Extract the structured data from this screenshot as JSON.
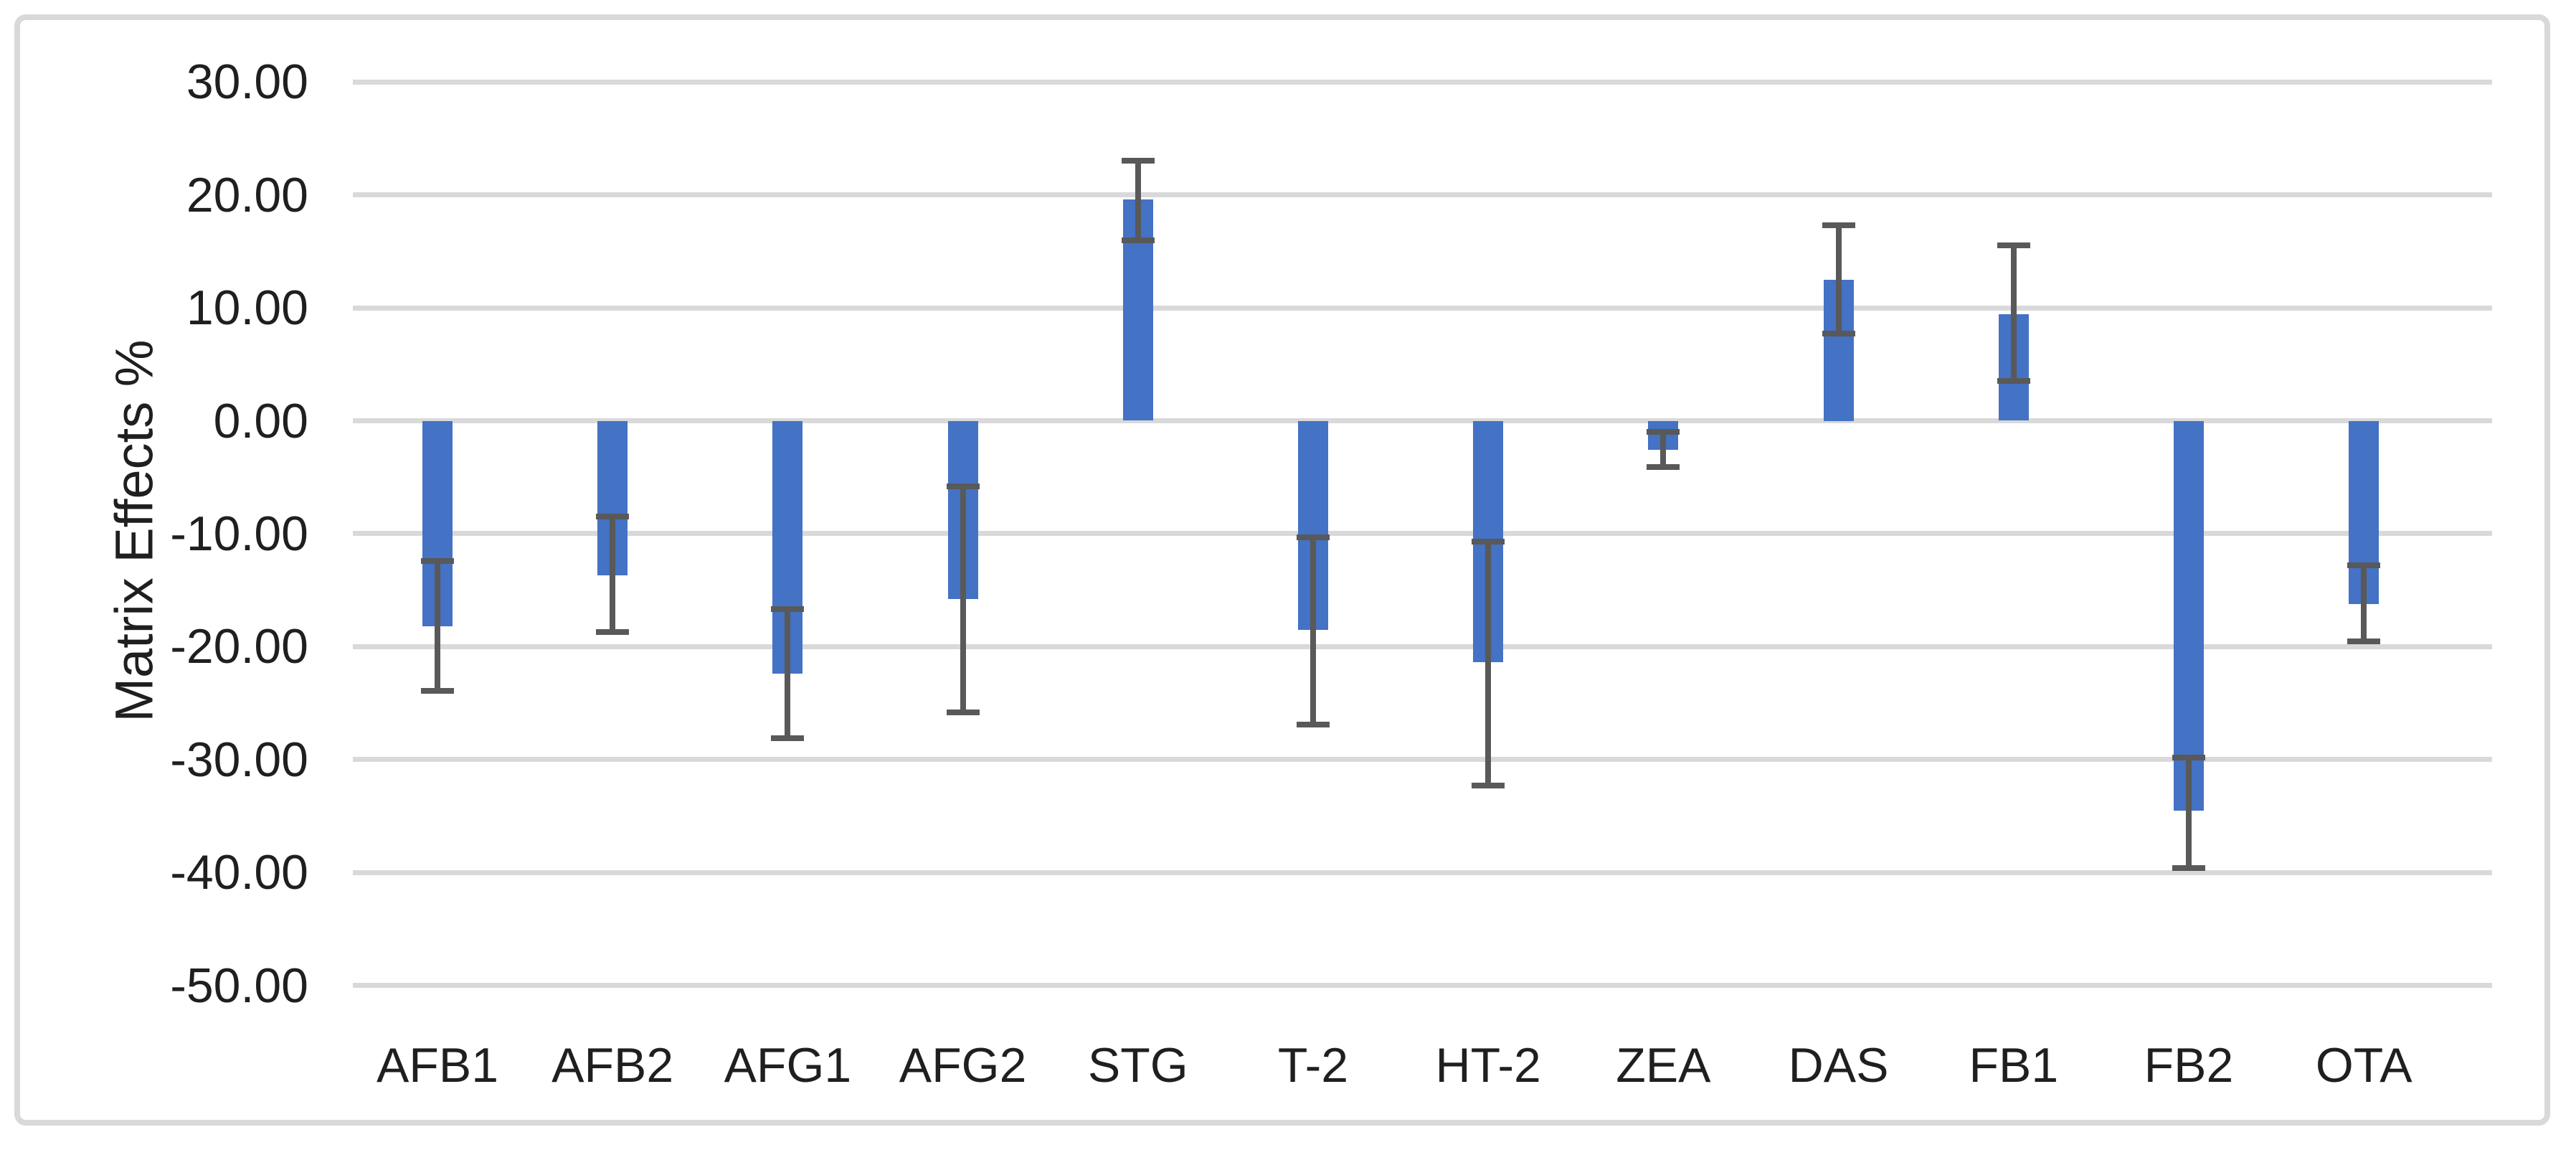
{
  "chart_data": {
    "type": "bar",
    "title": "",
    "xlabel": "",
    "ylabel": "Matrix Effects %",
    "categories": [
      "AFB1",
      "AFB2",
      "AFG1",
      "AFG2",
      "STG",
      "T-2",
      "HT-2",
      "ZEA",
      "DAS",
      "FB1",
      "FB2",
      "OTA"
    ],
    "series": [
      {
        "name": "Matrix Effects %",
        "values": [
          -18.2,
          -13.7,
          -22.4,
          -15.8,
          19.6,
          -18.5,
          -21.4,
          -2.6,
          12.5,
          9.4,
          -34.5,
          -16.2
        ],
        "error_high": [
          -12.4,
          -8.5,
          -16.7,
          -5.8,
          23.0,
          -10.3,
          -10.7,
          -1.0,
          17.3,
          15.5,
          -29.8,
          -12.8
        ],
        "error_low": [
          -23.9,
          -18.7,
          -28.1,
          -25.8,
          16.0,
          -26.9,
          -32.3,
          -4.1,
          7.7,
          3.5,
          -39.6,
          -19.5
        ]
      }
    ],
    "ylim": [
      -50,
      30
    ],
    "ytick_step": 10,
    "ytick_labels": [
      "30.00",
      "20.00",
      "10.00",
      "0.00",
      "-10.00",
      "-20.00",
      "-30.00",
      "-40.00",
      "-50.00"
    ],
    "grid": true,
    "legend_position": "none",
    "colors": {
      "bar": "#4472C4",
      "error_bar": "#595959",
      "gridline": "#D9D9D9",
      "frame_border": "#D9D9D9",
      "text": "#1f1f1f",
      "background": "#FFFFFF"
    }
  }
}
